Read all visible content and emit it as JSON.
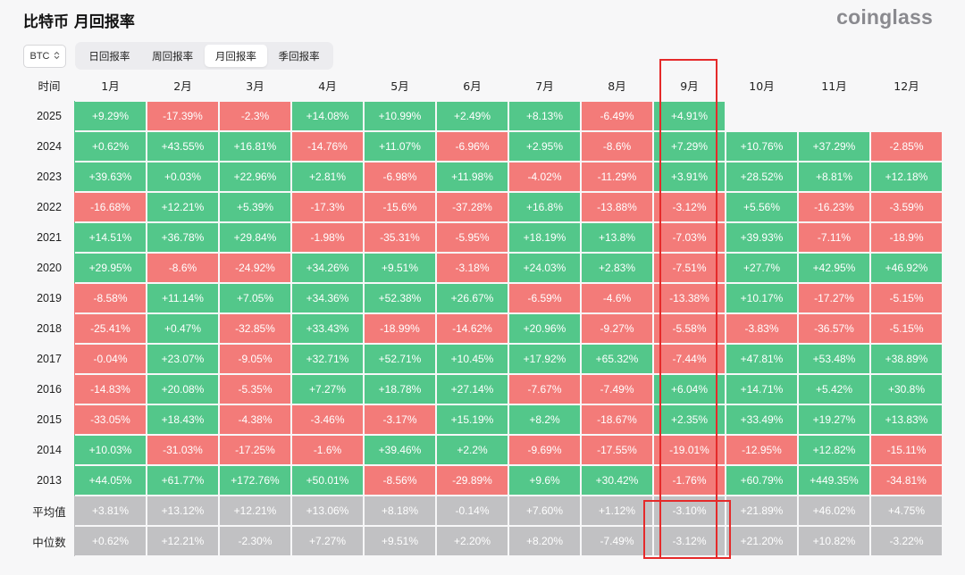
{
  "title": "比特币 月回报率",
  "brand": "coinglass",
  "asset_select": {
    "value": "BTC",
    "icon": "chevron-updown-icon"
  },
  "tabs": [
    {
      "label": "日回报率",
      "active": false
    },
    {
      "label": "周回报率",
      "active": false
    },
    {
      "label": "月回报率",
      "active": true
    },
    {
      "label": "季回报率",
      "active": false
    }
  ],
  "colors": {
    "positive": "#53c78a",
    "negative": "#f37b79",
    "summary": "#c1c1c3",
    "highlight": "#e52a2a"
  },
  "table": {
    "corner_label": "时间",
    "columns": [
      "1月",
      "2月",
      "3月",
      "4月",
      "5月",
      "6月",
      "7月",
      "8月",
      "9月",
      "10月",
      "11月",
      "12月"
    ],
    "rows": [
      {
        "label": "2025",
        "values": [
          "+9.29%",
          "-17.39%",
          "-2.3%",
          "+14.08%",
          "+10.99%",
          "+2.49%",
          "+8.13%",
          "-6.49%",
          "+4.91%",
          "",
          "",
          ""
        ]
      },
      {
        "label": "2024",
        "values": [
          "+0.62%",
          "+43.55%",
          "+16.81%",
          "-14.76%",
          "+11.07%",
          "-6.96%",
          "+2.95%",
          "-8.6%",
          "+7.29%",
          "+10.76%",
          "+37.29%",
          "-2.85%"
        ]
      },
      {
        "label": "2023",
        "values": [
          "+39.63%",
          "+0.03%",
          "+22.96%",
          "+2.81%",
          "-6.98%",
          "+11.98%",
          "-4.02%",
          "-11.29%",
          "+3.91%",
          "+28.52%",
          "+8.81%",
          "+12.18%"
        ]
      },
      {
        "label": "2022",
        "values": [
          "-16.68%",
          "+12.21%",
          "+5.39%",
          "-17.3%",
          "-15.6%",
          "-37.28%",
          "+16.8%",
          "-13.88%",
          "-3.12%",
          "+5.56%",
          "-16.23%",
          "-3.59%"
        ]
      },
      {
        "label": "2021",
        "values": [
          "+14.51%",
          "+36.78%",
          "+29.84%",
          "-1.98%",
          "-35.31%",
          "-5.95%",
          "+18.19%",
          "+13.8%",
          "-7.03%",
          "+39.93%",
          "-7.11%",
          "-18.9%"
        ]
      },
      {
        "label": "2020",
        "values": [
          "+29.95%",
          "-8.6%",
          "-24.92%",
          "+34.26%",
          "+9.51%",
          "-3.18%",
          "+24.03%",
          "+2.83%",
          "-7.51%",
          "+27.7%",
          "+42.95%",
          "+46.92%"
        ]
      },
      {
        "label": "2019",
        "values": [
          "-8.58%",
          "+11.14%",
          "+7.05%",
          "+34.36%",
          "+52.38%",
          "+26.67%",
          "-6.59%",
          "-4.6%",
          "-13.38%",
          "+10.17%",
          "-17.27%",
          "-5.15%"
        ]
      },
      {
        "label": "2018",
        "values": [
          "-25.41%",
          "+0.47%",
          "-32.85%",
          "+33.43%",
          "-18.99%",
          "-14.62%",
          "+20.96%",
          "-9.27%",
          "-5.58%",
          "-3.83%",
          "-36.57%",
          "-5.15%"
        ]
      },
      {
        "label": "2017",
        "values": [
          "-0.04%",
          "+23.07%",
          "-9.05%",
          "+32.71%",
          "+52.71%",
          "+10.45%",
          "+17.92%",
          "+65.32%",
          "-7.44%",
          "+47.81%",
          "+53.48%",
          "+38.89%"
        ]
      },
      {
        "label": "2016",
        "values": [
          "-14.83%",
          "+20.08%",
          "-5.35%",
          "+7.27%",
          "+18.78%",
          "+27.14%",
          "-7.67%",
          "-7.49%",
          "+6.04%",
          "+14.71%",
          "+5.42%",
          "+30.8%"
        ]
      },
      {
        "label": "2015",
        "values": [
          "-33.05%",
          "+18.43%",
          "-4.38%",
          "-3.46%",
          "-3.17%",
          "+15.19%",
          "+8.2%",
          "-18.67%",
          "+2.35%",
          "+33.49%",
          "+19.27%",
          "+13.83%"
        ]
      },
      {
        "label": "2014",
        "values": [
          "+10.03%",
          "-31.03%",
          "-17.25%",
          "-1.6%",
          "+39.46%",
          "+2.2%",
          "-9.69%",
          "-17.55%",
          "-19.01%",
          "-12.95%",
          "+12.82%",
          "-15.11%"
        ]
      },
      {
        "label": "2013",
        "values": [
          "+44.05%",
          "+61.77%",
          "+172.76%",
          "+50.01%",
          "-8.56%",
          "-29.89%",
          "+9.6%",
          "+30.42%",
          "-1.76%",
          "+60.79%",
          "+449.35%",
          "-34.81%"
        ]
      }
    ],
    "summary_rows": [
      {
        "label": "平均值",
        "values": [
          "+3.81%",
          "+13.12%",
          "+12.21%",
          "+13.06%",
          "+8.18%",
          "-0.14%",
          "+7.60%",
          "+1.12%",
          "-3.10%",
          "+21.89%",
          "+46.02%",
          "+4.75%"
        ]
      },
      {
        "label": "中位数",
        "values": [
          "+0.62%",
          "+12.21%",
          "-2.30%",
          "+7.27%",
          "+9.51%",
          "+2.20%",
          "+8.20%",
          "-7.49%",
          "-3.12%",
          "+21.20%",
          "+10.82%",
          "-3.22%"
        ]
      }
    ]
  }
}
